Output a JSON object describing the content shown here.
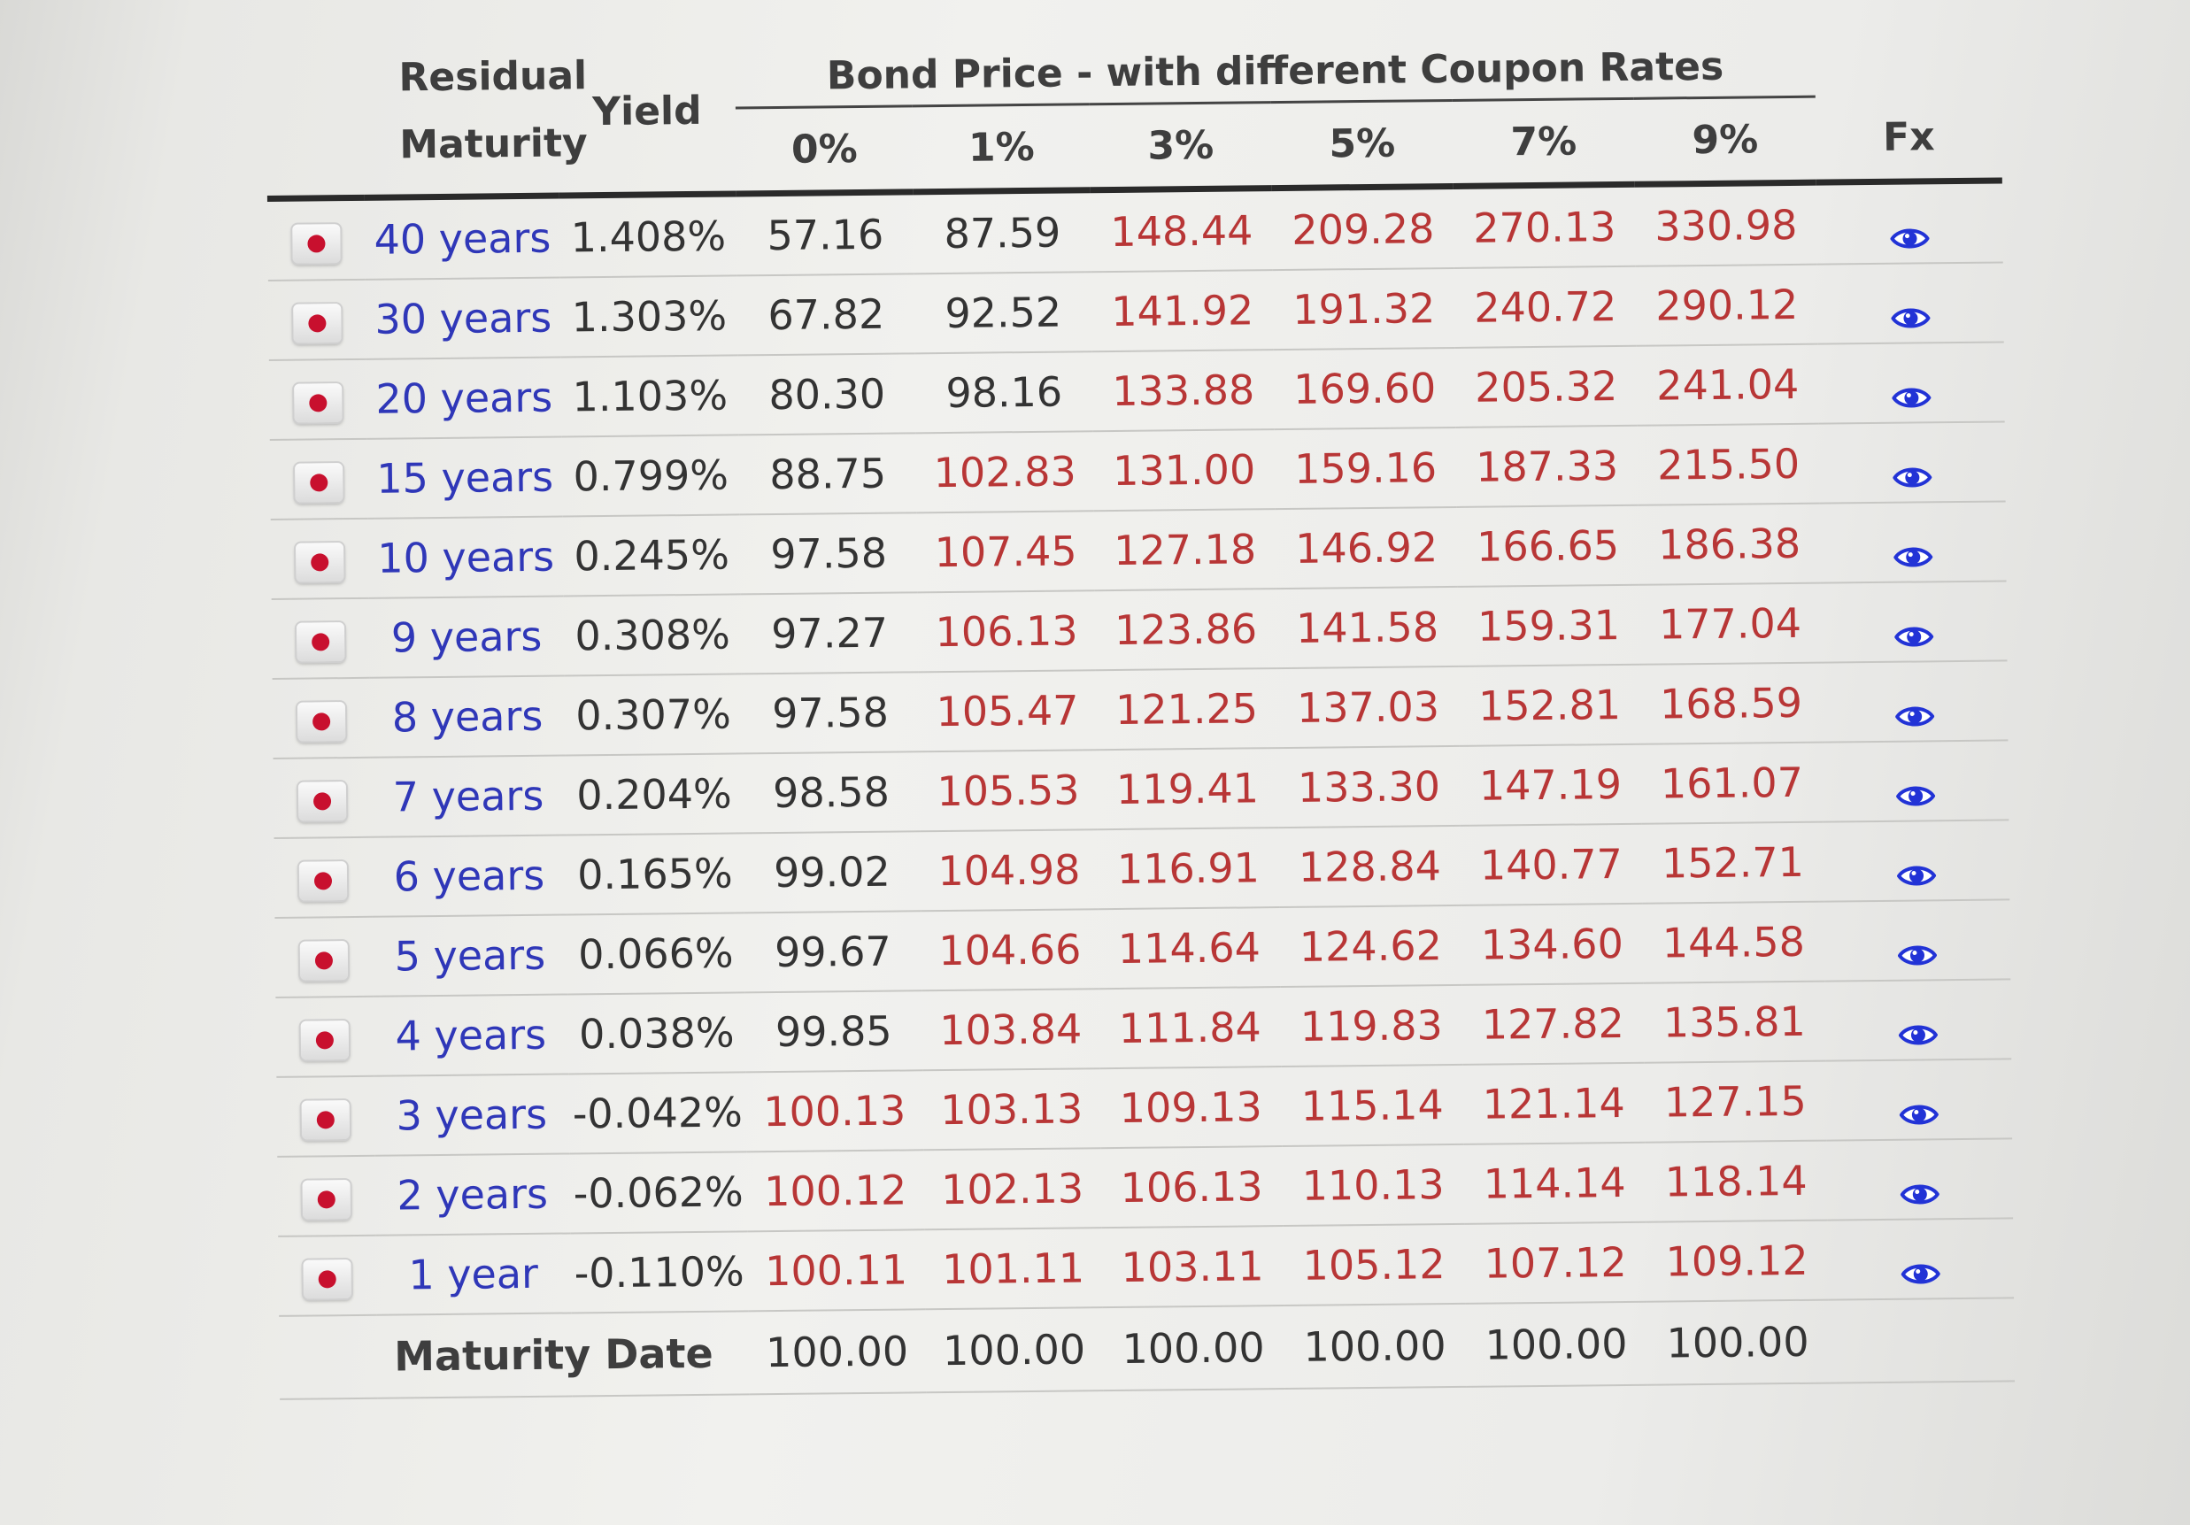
{
  "header": {
    "residual_maturity": "Residual\nMaturity",
    "yield": "Yield",
    "group_title": "Bond Price - with different Coupon Rates",
    "coupons": [
      "0%",
      "1%",
      "3%",
      "5%",
      "7%",
      "9%"
    ],
    "fx": "Fx"
  },
  "rows": [
    {
      "maturity": "40 years",
      "yield": "1.408%",
      "prices": [
        "57.16",
        "87.59",
        "148.44",
        "209.28",
        "270.13",
        "330.98"
      ]
    },
    {
      "maturity": "30 years",
      "yield": "1.303%",
      "prices": [
        "67.82",
        "92.52",
        "141.92",
        "191.32",
        "240.72",
        "290.12"
      ]
    },
    {
      "maturity": "20 years",
      "yield": "1.103%",
      "prices": [
        "80.30",
        "98.16",
        "133.88",
        "169.60",
        "205.32",
        "241.04"
      ]
    },
    {
      "maturity": "15 years",
      "yield": "0.799%",
      "prices": [
        "88.75",
        "102.83",
        "131.00",
        "159.16",
        "187.33",
        "215.50"
      ]
    },
    {
      "maturity": "10 years",
      "yield": "0.245%",
      "prices": [
        "97.58",
        "107.45",
        "127.18",
        "146.92",
        "166.65",
        "186.38"
      ]
    },
    {
      "maturity": "9 years",
      "yield": "0.308%",
      "prices": [
        "97.27",
        "106.13",
        "123.86",
        "141.58",
        "159.31",
        "177.04"
      ]
    },
    {
      "maturity": "8 years",
      "yield": "0.307%",
      "prices": [
        "97.58",
        "105.47",
        "121.25",
        "137.03",
        "152.81",
        "168.59"
      ]
    },
    {
      "maturity": "7 years",
      "yield": "0.204%",
      "prices": [
        "98.58",
        "105.53",
        "119.41",
        "133.30",
        "147.19",
        "161.07"
      ]
    },
    {
      "maturity": "6 years",
      "yield": "0.165%",
      "prices": [
        "99.02",
        "104.98",
        "116.91",
        "128.84",
        "140.77",
        "152.71"
      ]
    },
    {
      "maturity": "5 years",
      "yield": "0.066%",
      "prices": [
        "99.67",
        "104.66",
        "114.64",
        "124.62",
        "134.60",
        "144.58"
      ]
    },
    {
      "maturity": "4 years",
      "yield": "0.038%",
      "prices": [
        "99.85",
        "103.84",
        "111.84",
        "119.83",
        "127.82",
        "135.81"
      ]
    },
    {
      "maturity": "3 years",
      "yield": "-0.042%",
      "prices": [
        "100.13",
        "103.13",
        "109.13",
        "115.14",
        "121.14",
        "127.15"
      ]
    },
    {
      "maturity": "2 years",
      "yield": "-0.062%",
      "prices": [
        "100.12",
        "102.13",
        "106.13",
        "110.13",
        "114.14",
        "118.14"
      ]
    },
    {
      "maturity": "1 year",
      "yield": "-0.110%",
      "prices": [
        "100.11",
        "101.11",
        "103.11",
        "105.12",
        "107.12",
        "109.12"
      ]
    }
  ],
  "footer": {
    "label": "Maturity Date",
    "prices": [
      "100.00",
      "100.00",
      "100.00",
      "100.00",
      "100.00",
      "100.00"
    ]
  },
  "colors": {
    "maturity_text": "#2f37b8",
    "price_above_par": "#b83636",
    "price_below_par": "#333333",
    "eye_icon": "#2233d6",
    "flag_dot": "#c8102e"
  },
  "icons": {
    "row_flag": "japan-flag-icon",
    "fx": "eye-icon"
  }
}
